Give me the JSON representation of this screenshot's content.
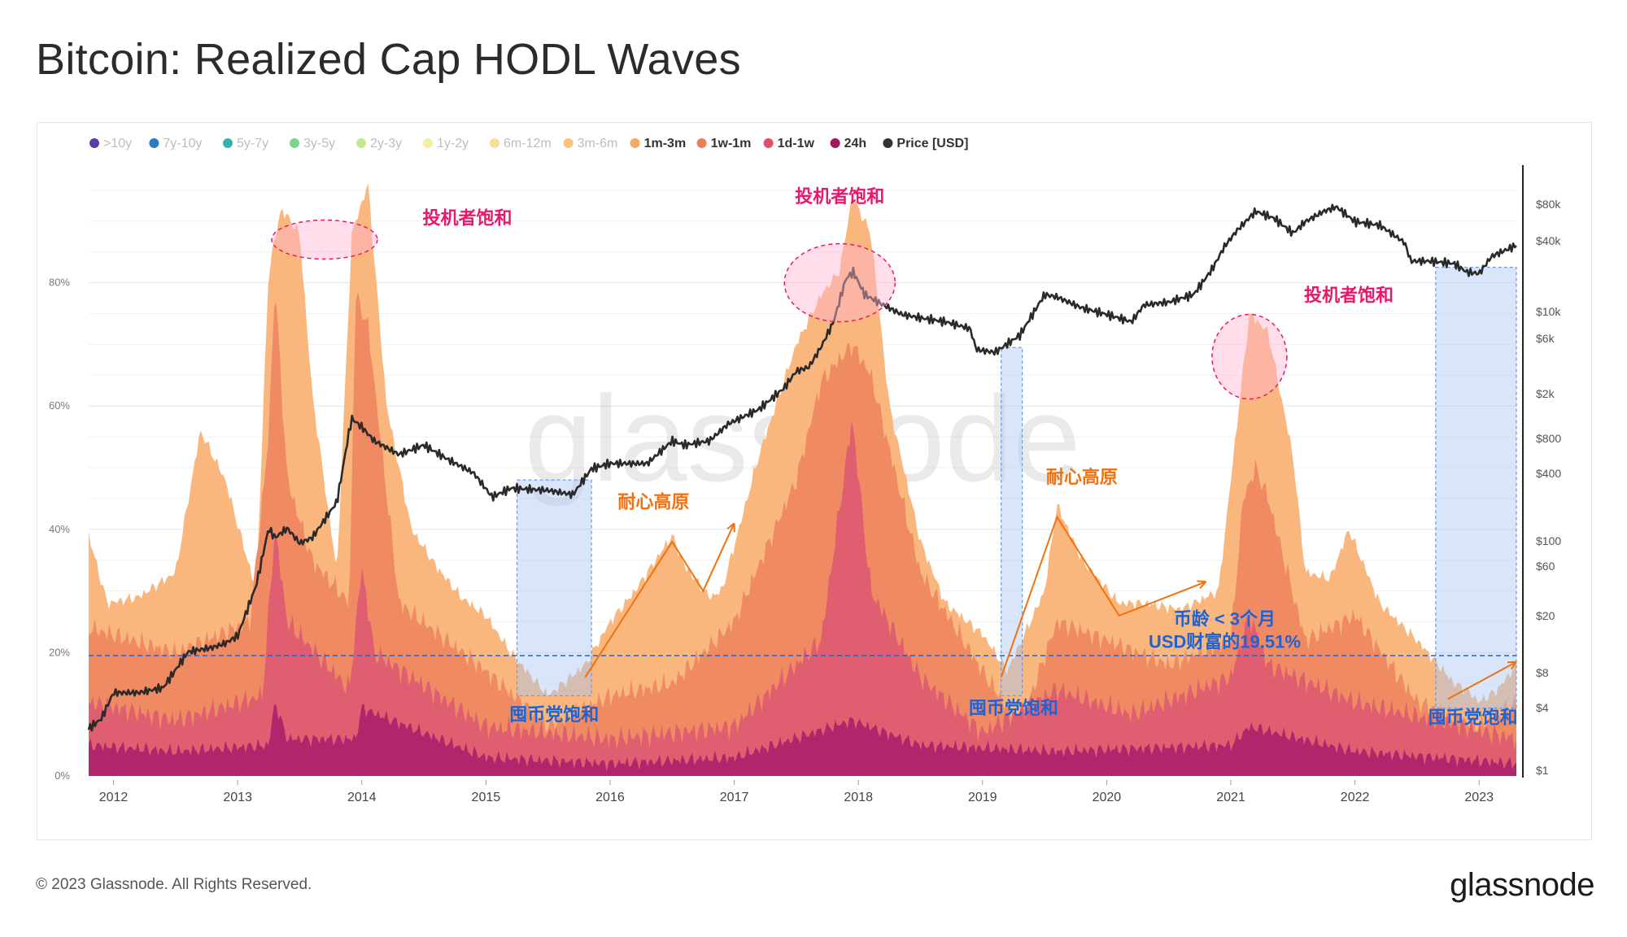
{
  "title": "Bitcoin: Realized Cap HODL Waves",
  "footer": "© 2023 Glassnode. All Rights Reserved.",
  "brand": "glassnode",
  "watermark": "glassnode",
  "legend": [
    {
      "label": ">10y",
      "color": "#5a3ea6",
      "active": false
    },
    {
      "label": "7y-10y",
      "color": "#2f78c4",
      "active": false
    },
    {
      "label": "5y-7y",
      "color": "#35b3a7",
      "active": false
    },
    {
      "label": "3y-5y",
      "color": "#7fd28a",
      "active": false
    },
    {
      "label": "2y-3y",
      "color": "#c6e88e",
      "active": false
    },
    {
      "label": "1y-2y",
      "color": "#f3efa2",
      "active": false
    },
    {
      "label": "6m-12m",
      "color": "#f6dd9e",
      "active": false
    },
    {
      "label": "3m-6m",
      "color": "#f9c37a",
      "active": false
    },
    {
      "label": "1m-3m",
      "color": "#f6a85e",
      "active": true
    },
    {
      "label": "1w-1m",
      "color": "#ee7d5a",
      "active": true
    },
    {
      "label": "1d-1w",
      "color": "#dd4f6b",
      "active": true
    },
    {
      "label": "24h",
      "color": "#a3155f",
      "active": true
    },
    {
      "label": "Price [USD]",
      "color": "#333333",
      "active": true
    }
  ],
  "chart_data": {
    "type": "area",
    "title": "Bitcoin: Realized Cap HODL Waves",
    "x_ticks": [
      "2012",
      "2013",
      "2014",
      "2015",
      "2016",
      "2017",
      "2018",
      "2019",
      "2020",
      "2021",
      "2022",
      "2023"
    ],
    "y_left_ticks": [
      "0%",
      "20%",
      "40%",
      "60%",
      "80%"
    ],
    "y_left_range": [
      0,
      100
    ],
    "y_right_ticks": [
      "$1",
      "$4",
      "$8",
      "$20",
      "$60",
      "$100",
      "$400",
      "$800",
      "$2k",
      "$6k",
      "$10k",
      "$40k",
      "$80k"
    ],
    "y_right_range": [
      1,
      150000
    ],
    "y_right_scale": "log",
    "reference_line": 19.51,
    "series": [
      {
        "name": "1m-3m (stacked total < 3 months, %)",
        "x": [
          2011.8,
          2011.95,
          2012.2,
          2012.5,
          2012.7,
          2012.9,
          2013.15,
          2013.25,
          2013.35,
          2013.5,
          2013.6,
          2013.8,
          2013.92,
          2014.05,
          2014.2,
          2014.4,
          2014.6,
          2014.8,
          2015.0,
          2015.2,
          2015.5,
          2015.8,
          2016.0,
          2016.2,
          2016.5,
          2016.6,
          2016.8,
          2016.9,
          2017.2,
          2017.5,
          2017.7,
          2017.85,
          2017.95,
          2018.1,
          2018.25,
          2018.5,
          2018.7,
          2019.0,
          2019.2,
          2019.5,
          2019.6,
          2019.8,
          2020.1,
          2020.3,
          2020.6,
          2020.9,
          2021.0,
          2021.15,
          2021.3,
          2021.5,
          2021.6,
          2021.8,
          2021.95,
          2022.2,
          2022.5,
          2022.8,
          2022.9,
          2023.0,
          2023.15,
          2023.3
        ],
        "values": [
          39,
          28,
          29,
          33,
          56,
          48,
          30,
          82,
          92,
          88,
          62,
          33,
          88,
          96,
          60,
          40,
          34,
          29,
          26,
          20,
          13,
          18,
          25,
          30,
          39,
          34,
          29,
          30,
          52,
          70,
          78,
          82,
          94,
          88,
          60,
          38,
          28,
          23,
          17,
          30,
          44,
          35,
          28,
          28,
          27,
          30,
          48,
          75,
          72,
          52,
          33,
          32,
          40,
          28,
          22,
          15,
          14,
          12,
          14,
          18
        ]
      },
      {
        "name": "1w-1m (%)",
        "x": [
          2011.8,
          2012.5,
          2013.1,
          2013.25,
          2013.3,
          2013.4,
          2013.6,
          2013.9,
          2013.95,
          2014.05,
          2014.3,
          2015.0,
          2015.5,
          2016.0,
          2016.5,
          2017.0,
          2017.5,
          2017.7,
          2017.95,
          2018.1,
          2018.5,
          2019.0,
          2019.3,
          2019.6,
          2020.0,
          2020.5,
          2021.0,
          2021.1,
          2021.2,
          2021.3,
          2021.6,
          2022.0,
          2022.5,
          2023.0,
          2023.3
        ],
        "values": [
          24,
          20,
          25,
          55,
          80,
          48,
          35,
          28,
          78,
          73,
          28,
          17,
          8,
          13,
          15,
          25,
          48,
          64,
          70,
          65,
          33,
          17,
          8,
          25,
          22,
          18,
          22,
          45,
          50,
          45,
          22,
          26,
          12,
          8,
          12
        ]
      },
      {
        "name": "1d-1w (%)",
        "x": [
          2011.8,
          2012.5,
          2013.2,
          2013.3,
          2013.4,
          2013.9,
          2014.0,
          2014.1,
          2015.0,
          2016.0,
          2017.0,
          2017.7,
          2017.95,
          2018.1,
          2018.5,
          2019.0,
          2019.6,
          2020.2,
          2021.0,
          2021.15,
          2021.3,
          2022.0,
          2023.3
        ],
        "values": [
          12,
          9,
          13,
          40,
          25,
          14,
          34,
          20,
          8,
          6,
          8,
          22,
          58,
          30,
          16,
          7,
          14,
          10,
          16,
          26,
          18,
          12,
          6
        ]
      },
      {
        "name": "24h (%)",
        "x": [
          2011.8,
          2012.5,
          2013.25,
          2013.3,
          2013.4,
          2013.95,
          2014.0,
          2015.0,
          2016.0,
          2017.0,
          2017.95,
          2018.5,
          2019.6,
          2021.0,
          2021.15,
          2022.0,
          2023.3
        ],
        "values": [
          5,
          4,
          5,
          12,
          6,
          6,
          11,
          3,
          2,
          3,
          9,
          5,
          4,
          5,
          8,
          4,
          2
        ]
      },
      {
        "name": "Price [USD]",
        "x": [
          2011.8,
          2011.9,
          2012.0,
          2012.2,
          2012.4,
          2012.6,
          2012.8,
          2012.9,
          2013.0,
          2013.15,
          2013.25,
          2013.3,
          2013.4,
          2013.5,
          2013.6,
          2013.8,
          2013.9,
          2013.92,
          2014.0,
          2014.1,
          2014.3,
          2014.5,
          2014.7,
          2014.9,
          2015.05,
          2015.2,
          2015.5,
          2015.7,
          2015.85,
          2016.0,
          2016.3,
          2016.5,
          2016.6,
          2016.8,
          2016.95,
          2017.2,
          2017.4,
          2017.5,
          2017.6,
          2017.7,
          2017.8,
          2017.9,
          2017.96,
          2018.05,
          2018.2,
          2018.35,
          2018.5,
          2018.7,
          2018.9,
          2018.95,
          2019.1,
          2019.3,
          2019.5,
          2019.6,
          2019.8,
          2020.0,
          2020.2,
          2020.3,
          2020.5,
          2020.7,
          2020.85,
          2020.95,
          2021.05,
          2021.2,
          2021.35,
          2021.5,
          2021.6,
          2021.75,
          2021.85,
          2022.0,
          2022.2,
          2022.4,
          2022.45,
          2022.6,
          2022.8,
          2022.9,
          2023.0,
          2023.1,
          2023.25,
          2023.3
        ],
        "values": [
          2.5,
          3,
          5,
          5,
          5.5,
          11,
          12,
          13,
          15,
          40,
          120,
          100,
          120,
          90,
          100,
          200,
          800,
          1000,
          850,
          650,
          500,
          600,
          450,
          350,
          220,
          260,
          250,
          230,
          380,
          420,
          420,
          650,
          600,
          650,
          900,
          1200,
          1800,
          2500,
          2700,
          4000,
          6500,
          15000,
          17000,
          11000,
          9000,
          7500,
          7000,
          6500,
          5700,
          3800,
          3600,
          5000,
          11000,
          10500,
          8500,
          7500,
          6500,
          9000,
          9500,
          11000,
          18000,
          28000,
          38000,
          55000,
          48000,
          36000,
          45000,
          55000,
          60000,
          45000,
          42000,
          30000,
          21000,
          21000,
          20000,
          17000,
          16500,
          23000,
          27000,
          28500
        ]
      }
    ],
    "annotations": [
      {
        "text": "投机者饱和",
        "color": "#e8196d"
      },
      {
        "text": "投机者饱和",
        "color": "#e8196d"
      },
      {
        "text": "投机者饱和",
        "color": "#e8196d"
      },
      {
        "text": "耐心高原",
        "color": "#f2710e"
      },
      {
        "text": "耐心高原",
        "color": "#f2710e"
      },
      {
        "text": "囤币党饱和",
        "color": "#1e63d6"
      },
      {
        "text": "囤币党饱和",
        "color": "#1e63d6"
      },
      {
        "text": "囤币党饱和",
        "color": "#1e63d6"
      },
      {
        "text": "币龄 < 3个月",
        "color": "#1e63d6"
      },
      {
        "text": "USD财富的19.51%",
        "color": "#1e63d6"
      }
    ]
  }
}
